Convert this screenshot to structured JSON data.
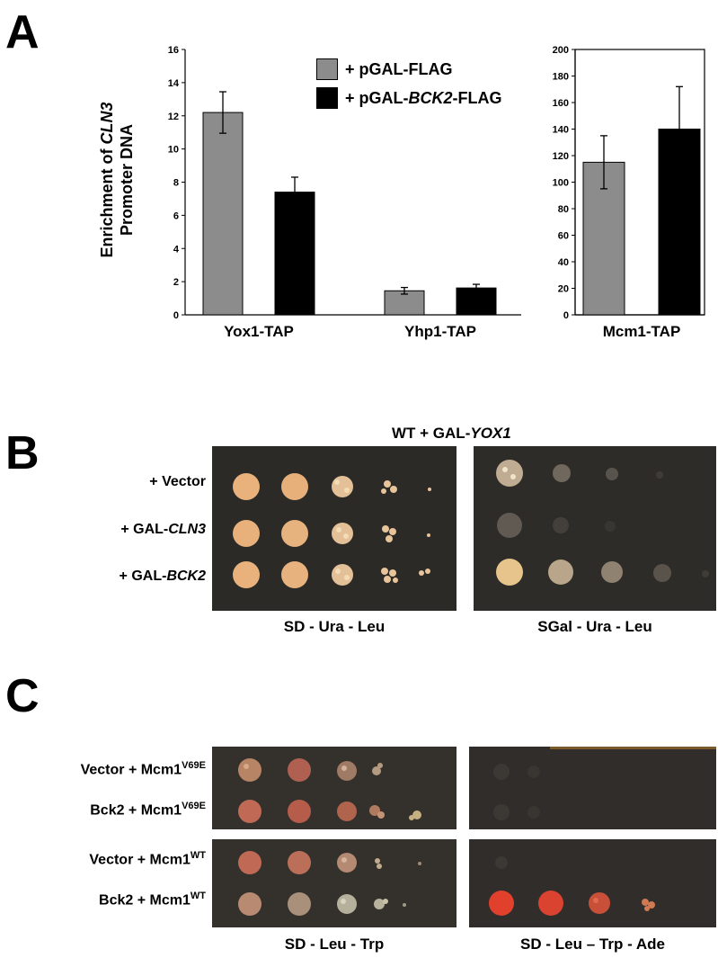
{
  "panels": {
    "a": "A",
    "b": "B",
    "c": "C"
  },
  "panel_a": {
    "ylabel_pre": "Enrichment of ",
    "ylabel_gene": "CLN3",
    "ylabel_line2": "Promoter DNA",
    "legend": [
      {
        "pre": "+ pGAL-FLAG",
        "gene": "",
        "post": "",
        "color": "#8c8c8c"
      },
      {
        "pre": "+ pGAL-",
        "gene": "BCK2",
        "post": "-FLAG",
        "color": "#000000"
      }
    ]
  },
  "chart_data": [
    {
      "type": "bar",
      "categories": [
        "Yox1-TAP",
        "Yhp1-TAP"
      ],
      "series": [
        {
          "name": "+ pGAL-FLAG",
          "values": [
            12.2,
            1.45
          ],
          "errors": [
            1.25,
            0.2
          ],
          "color": "#8c8c8c"
        },
        {
          "name": "+ pGAL-BCK2-FLAG",
          "values": [
            7.4,
            1.62
          ],
          "errors": [
            0.9,
            0.22
          ],
          "color": "#000000"
        }
      ],
      "ylim": [
        0,
        16
      ],
      "yticks": [
        "0",
        "2",
        "4",
        "6",
        "8",
        "10",
        "12",
        "14",
        "16"
      ],
      "grid": false,
      "legend": "top-right"
    },
    {
      "type": "bar",
      "categories": [
        "Mcm1-TAP"
      ],
      "series": [
        {
          "name": "+ pGAL-FLAG",
          "values": [
            115
          ],
          "errors": [
            20
          ],
          "color": "#8c8c8c"
        },
        {
          "name": "+ pGAL-BCK2-FLAG",
          "values": [
            140
          ],
          "errors": [
            32
          ],
          "color": "#000000"
        }
      ],
      "ylim": [
        0,
        200
      ],
      "yticks": [
        "0",
        "20",
        "40",
        "60",
        "80",
        "100",
        "120",
        "140",
        "160",
        "180",
        "200"
      ],
      "grid": false
    }
  ],
  "panel_b": {
    "title_pre": "WT + GAL-",
    "title_gene": "YOX1",
    "rows": [
      {
        "pre": "+ Vector",
        "gene": ""
      },
      {
        "pre": "+ GAL-",
        "gene": "CLN3"
      },
      {
        "pre": "+ GAL-",
        "gene": "BCK2"
      }
    ],
    "plates": [
      "SD - Ura - Leu",
      "SGal - Ura - Leu"
    ]
  },
  "panel_c": {
    "rows": [
      {
        "pre": "Vector + Mcm1",
        "sup": "V69E"
      },
      {
        "pre": "Bck2 + Mcm1",
        "sup": "V69E"
      },
      {
        "pre": "Vector + Mcm1",
        "sup": "WT"
      },
      {
        "pre": "Bck2 + Mcm1",
        "sup": "WT"
      }
    ],
    "plates": [
      "SD - Leu - Trp",
      "SD - Leu – Trp - Ade"
    ]
  }
}
